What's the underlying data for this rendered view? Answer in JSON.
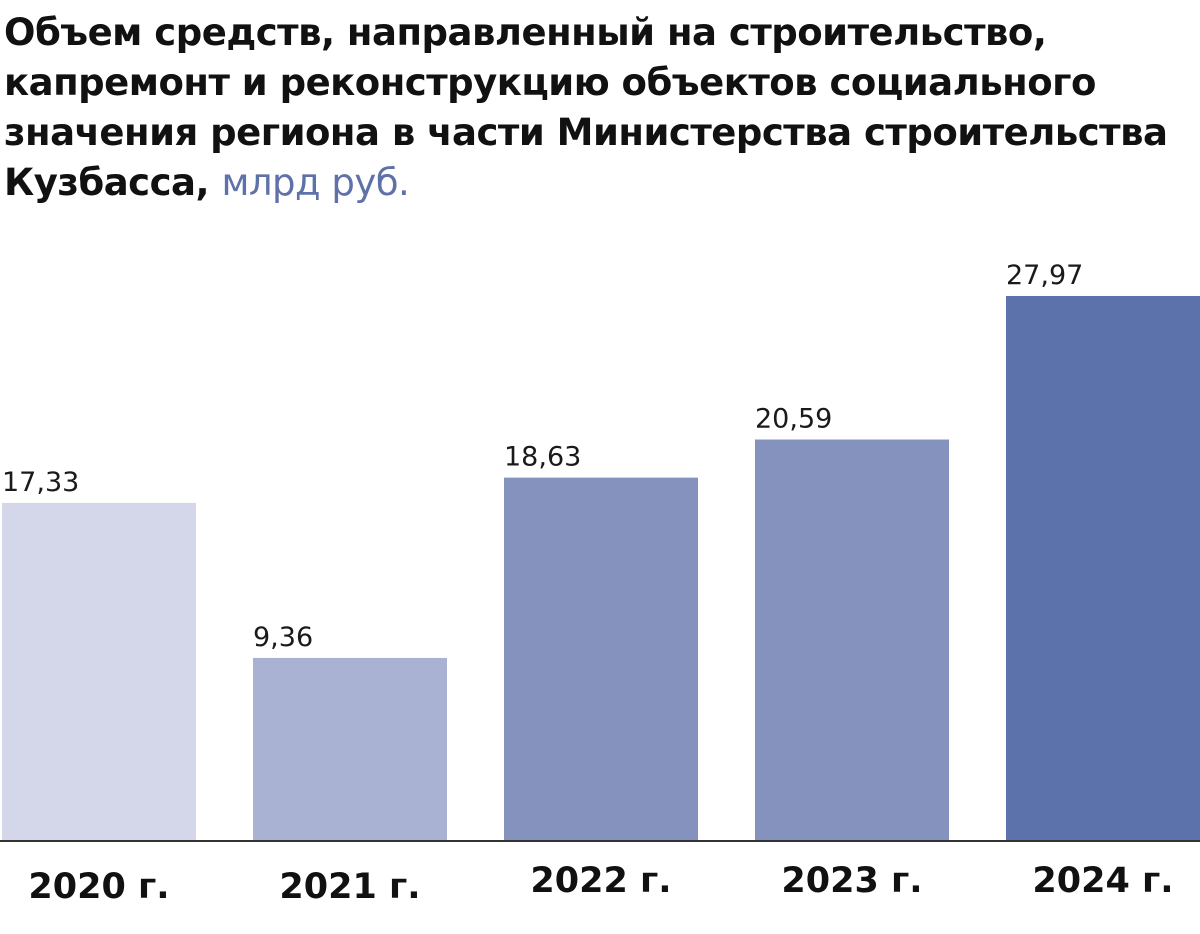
{
  "title": {
    "main": "Объем средств, направленный на строительство, капремонт и реконструкцию объектов социального значения региона в части Министерства строительства Кузбасса,",
    "unit": "млрд руб."
  },
  "chart_data": {
    "type": "bar",
    "title": "Объем средств, направленный на строительство, капремонт и реконструкцию объектов социального значения региона в части Министерства строительства Кузбасса, млрд руб.",
    "categories": [
      "2020 г.",
      "2021 г.",
      "2022 г.",
      "2023 г.",
      "2024 г."
    ],
    "values": [
      17.33,
      9.36,
      18.63,
      20.59,
      27.97
    ],
    "value_labels": [
      "17,33",
      "9,36",
      "18,63",
      "20,59",
      "27,97"
    ],
    "bar_colors": [
      "#d4d7ea",
      "#aab2d4",
      "#8592bd",
      "#8592bd",
      "#5c72aa"
    ],
    "xlabel": "",
    "ylabel": "",
    "ylim": [
      0,
      30
    ],
    "grid": false,
    "legend": "none",
    "axis_color": "#333333"
  }
}
